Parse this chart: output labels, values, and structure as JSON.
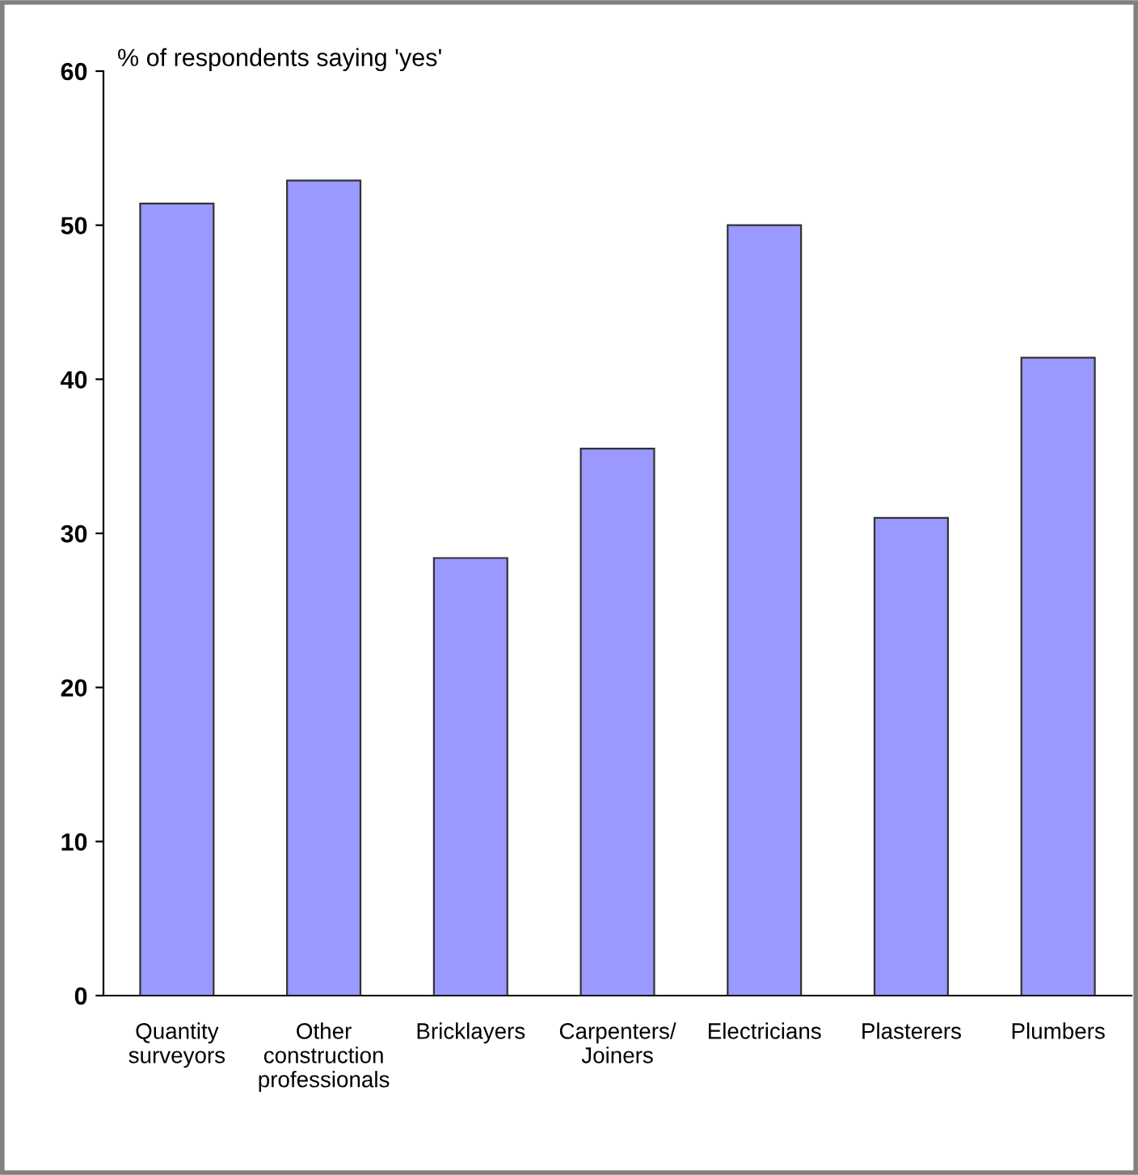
{
  "chart_data": {
    "type": "bar",
    "ylabel": "% of respondents saying 'yes'",
    "categories": [
      "Quantity\nsurveyors",
      "Other\nconstruction\nprofessionals",
      "Bricklayers",
      "Carpenters/\nJoiners",
      "Electricians",
      "Plasterers",
      "Plumbers"
    ],
    "values": [
      51.4,
      52.9,
      28.4,
      35.5,
      50.0,
      31.0,
      41.4
    ],
    "color": "#9999ff",
    "ylim": [
      0,
      60
    ],
    "yticks": [
      0,
      10,
      20,
      30,
      40,
      50,
      60
    ],
    "grid": false,
    "legend": false
  }
}
